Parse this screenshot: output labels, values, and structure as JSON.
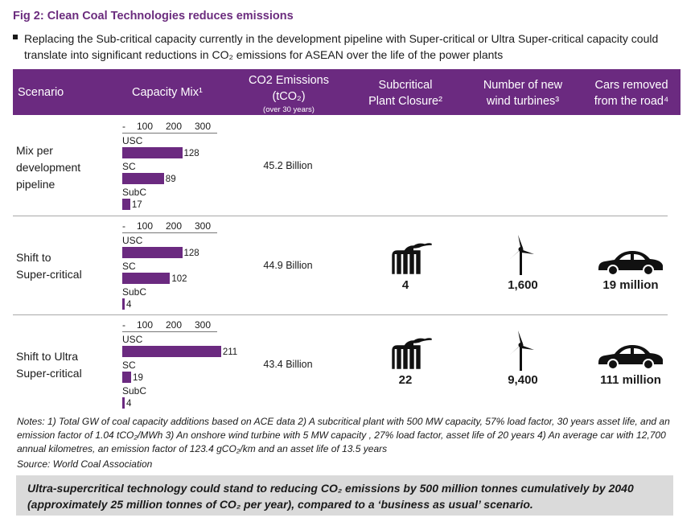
{
  "title": "Fig 2: Clean Coal Technologies reduces emissions",
  "bullet": "Replacing the Sub-critical capacity currently in the development pipeline with Super-critical or Ultra Super-critical capacity could translate into significant reductions in CO₂ emissions for ASEAN over the life of the power plants",
  "headers": {
    "scenario": "Scenario",
    "capacity_mix": "Capacity Mix¹",
    "co2_line1": "CO2 Emissions",
    "co2_line2": "(tCO₂)",
    "co2_note": "(over 30 years)",
    "closure_line1": "Subcritical",
    "closure_line2": "Plant Closure²",
    "turbines_line1": "Number of new",
    "turbines_line2": "wind turbines³",
    "cars_line1": "Cars removed",
    "cars_line2": "from the road⁴"
  },
  "axis_ticks": [
    "-",
    "100",
    "200",
    "300"
  ],
  "rows": [
    {
      "scenario_line1": "Mix per",
      "scenario_line2": "development",
      "scenario_line3": "pipeline",
      "emissions": "45.2 Billion",
      "closure": "",
      "turbines": "",
      "cars": ""
    },
    {
      "scenario_line1": "Shift to",
      "scenario_line2": "Super-critical",
      "scenario_line3": "",
      "emissions": "44.9 Billion",
      "closure": "4",
      "turbines": "1,600",
      "cars": "19 million"
    },
    {
      "scenario_line1": "Shift to Ultra",
      "scenario_line2": "Super-critical",
      "scenario_line3": "",
      "emissions": "43.4 Billion",
      "closure": "22",
      "turbines": "9,400",
      "cars": "111 million"
    }
  ],
  "chart_data": [
    {
      "type": "bar",
      "orientation": "horizontal",
      "categories": [
        "USC",
        "SC",
        "SubC"
      ],
      "values": [
        128,
        89,
        17
      ],
      "xlim": [
        0,
        300
      ],
      "ticks": [
        "-",
        "100",
        "200",
        "300"
      ],
      "color": "#6b2a80"
    },
    {
      "type": "bar",
      "orientation": "horizontal",
      "categories": [
        "USC",
        "SC",
        "SubC"
      ],
      "values": [
        128,
        102,
        4
      ],
      "xlim": [
        0,
        300
      ],
      "ticks": [
        "-",
        "100",
        "200",
        "300"
      ],
      "color": "#6b2a80"
    },
    {
      "type": "bar",
      "orientation": "horizontal",
      "categories": [
        "USC",
        "SC",
        "SubC"
      ],
      "values": [
        211,
        19,
        4
      ],
      "xlim": [
        0,
        300
      ],
      "ticks": [
        "-",
        "100",
        "200",
        "300"
      ],
      "color": "#6b2a80"
    }
  ],
  "icons": {
    "closure": "factory-icon",
    "turbines": "wind-turbine-icon",
    "cars": "car-icon"
  },
  "notes": "Notes: 1) Total GW of coal capacity additions based on ACE data  2) A subcritical plant with 500 MW capacity, 57% load factor, 30 years asset life, and an emission factor of 1.04 tCO₂/MWh  3) An onshore wind turbine with 5 MW capacity , 27% load factor, asset life of 20 years  4) An average car with 12,700 annual kilometres, an emission factor of 123.4 gCO₂/km and an asset life of 13.5 years",
  "source": "Source: World Coal Association",
  "callout": "Ultra-supercritical technology could stand to reducing CO₂ emissions by 500 million tonnes cumulatively by 2040 (approximately 25 million tonnes of CO₂ per year), compared to a ‘business as usual’ scenario.",
  "colors": {
    "brand_purple": "#6b2a80",
    "title_purple": "#6b2c7e",
    "callout_bg": "#dadada"
  }
}
